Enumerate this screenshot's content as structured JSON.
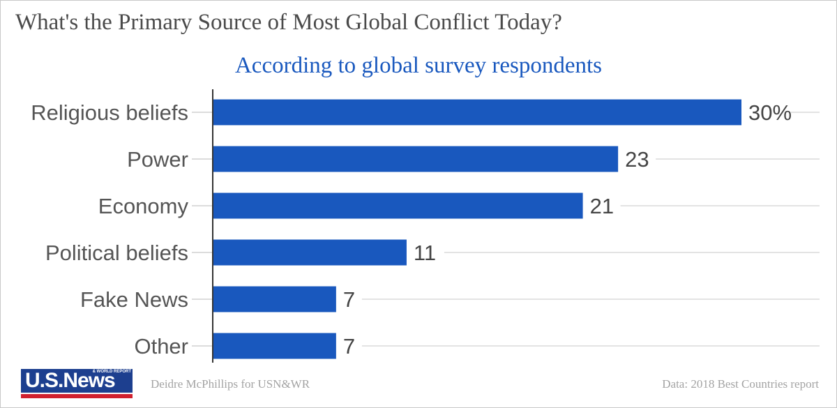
{
  "chart_data": {
    "type": "bar",
    "orientation": "horizontal",
    "title": "What's the Primary Source of Most Global Conflict Today?",
    "subtitle": "According to global survey respondents",
    "categories": [
      "Religious beliefs",
      "Power",
      "Economy",
      "Political beliefs",
      "Fake News",
      "Other"
    ],
    "values": [
      30,
      23,
      21,
      11,
      7,
      7
    ],
    "value_labels": [
      "30%",
      "23",
      "21",
      "11",
      "7",
      "7"
    ],
    "xlim": [
      0,
      30
    ],
    "unit": "%",
    "bar_color": "#1958be"
  },
  "footer": {
    "logo_text": "U.S.News",
    "logo_small_text": "& WORLD REPORT",
    "credit": "Deidre McPhillips for USN&WR",
    "source": "Data: 2018 Best Countries report"
  },
  "colors": {
    "title": "#4a4a4a",
    "subtitle": "#1958be",
    "footer_text": "#a3a3a3",
    "logo_blue": "#1d3f8f",
    "logo_red": "#d0202e"
  }
}
